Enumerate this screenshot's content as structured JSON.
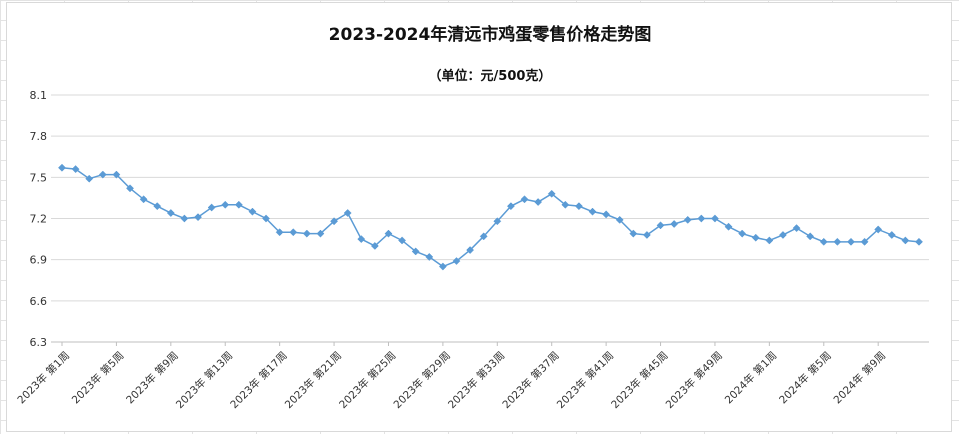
{
  "chart_data": {
    "type": "line",
    "title": "2023-2024年清远市鸡蛋零售价格走势图",
    "subtitle": "（单位：元/500克）",
    "ylim": [
      6.3,
      8.1
    ],
    "yticks": [
      "8.1",
      "7.8",
      "7.5",
      "7.2",
      "6.9",
      "6.6",
      "6.3"
    ],
    "grid": true,
    "legend": "none",
    "color": "#5B9BD5",
    "xtick_labels": [
      "2023年 第1周",
      "2023年 第5周",
      "2023年 第9周",
      "2023年 第13周",
      "2023年 第17周",
      "2023年 第21周",
      "2023年 第25周",
      "2023年 第29周",
      "2023年 第33周",
      "2023年 第37周",
      "2023年 第41周",
      "2023年 第45周",
      "2023年 第49周",
      "2024年 第1周",
      "2024年 第5周",
      "2024年 第9周"
    ],
    "values": [
      7.57,
      7.56,
      7.49,
      7.52,
      7.52,
      7.42,
      7.34,
      7.29,
      7.24,
      7.2,
      7.21,
      7.28,
      7.3,
      7.3,
      7.25,
      7.2,
      7.1,
      7.1,
      7.09,
      7.09,
      7.18,
      7.24,
      7.05,
      7.0,
      7.09,
      7.04,
      6.96,
      6.92,
      6.85,
      6.89,
      6.97,
      7.07,
      7.18,
      7.29,
      7.34,
      7.32,
      7.38,
      7.3,
      7.29,
      7.25,
      7.23,
      7.19,
      7.09,
      7.08,
      7.15,
      7.16,
      7.19,
      7.2,
      7.2,
      7.14,
      7.09,
      7.06,
      7.04,
      7.08,
      7.13,
      7.07,
      7.03,
      7.03,
      7.03,
      7.03,
      7.12,
      7.08,
      7.04,
      7.03
    ]
  }
}
